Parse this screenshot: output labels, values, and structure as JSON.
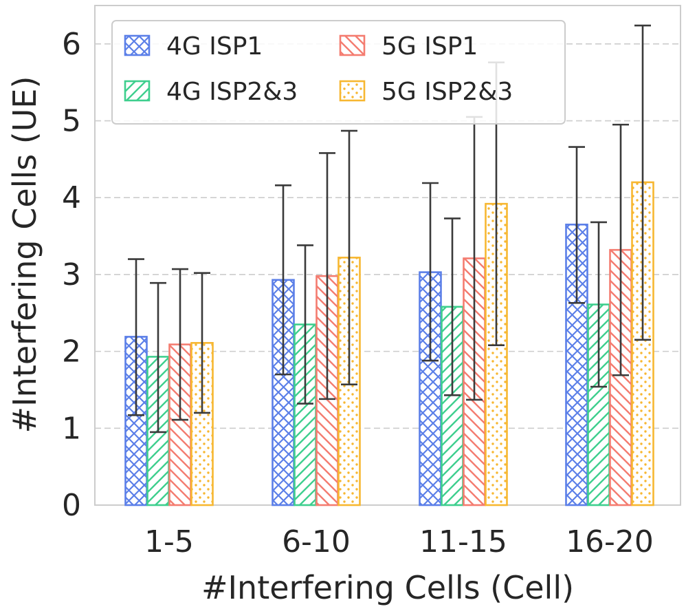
{
  "chart_data": {
    "type": "bar",
    "xlabel": "#Interfering Cells (Cell)",
    "ylabel": "#Interfering Cells (UE)",
    "categories": [
      "1-5",
      "6-10",
      "11-15",
      "16-20"
    ],
    "ylim": [
      0,
      6.5
    ],
    "yticks": [
      0,
      1,
      2,
      3,
      4,
      5,
      6
    ],
    "grid": "horizontal dashed",
    "legend_position": "top-left",
    "series": [
      {
        "name": "4G ISP1",
        "color": "#5b7fe8",
        "hatch": "crosshatch",
        "values": [
          2.19,
          2.93,
          3.03,
          3.65
        ],
        "err_low": [
          1.17,
          1.7,
          1.88,
          2.63
        ],
        "err_high": [
          3.2,
          4.16,
          4.19,
          4.66
        ]
      },
      {
        "name": "4G ISP2&3",
        "color": "#3ecf8e",
        "hatch": "diagonal-forward",
        "values": [
          1.93,
          2.35,
          2.58,
          2.61
        ],
        "err_low": [
          0.95,
          1.32,
          1.43,
          1.54
        ],
        "err_high": [
          2.89,
          3.38,
          3.73,
          3.68
        ]
      },
      {
        "name": "5G ISP1",
        "color": "#f47c70",
        "hatch": "diagonal-back",
        "values": [
          2.09,
          2.98,
          3.21,
          3.32
        ],
        "err_low": [
          1.11,
          1.38,
          1.37,
          1.69
        ],
        "err_high": [
          3.07,
          4.58,
          5.05,
          4.95
        ]
      },
      {
        "name": "5G ISP2&3",
        "color": "#f7b731",
        "hatch": "dots",
        "values": [
          2.11,
          3.22,
          3.92,
          4.2
        ],
        "err_low": [
          1.2,
          1.57,
          2.08,
          2.15
        ],
        "err_high": [
          3.02,
          4.87,
          5.76,
          6.24
        ]
      }
    ]
  }
}
